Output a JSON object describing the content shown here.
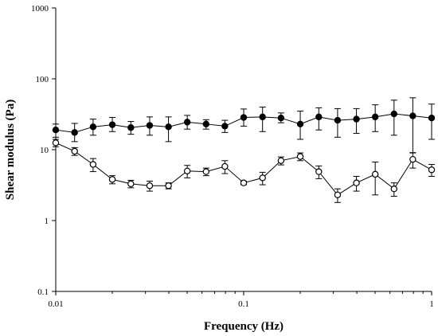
{
  "chart_data": {
    "type": "scatter",
    "xlabel": "Frequency (Hz)",
    "ylabel": "Shear modulus (Pa)",
    "xscale": "log",
    "yscale": "log",
    "xlim": [
      0.01,
      1
    ],
    "ylim": [
      0.1,
      1000
    ],
    "x_ticks": [
      "0.01",
      "0.1",
      "1"
    ],
    "y_ticks": [
      "0.1",
      "1",
      "10",
      "100",
      "1000"
    ],
    "grid": false,
    "legend": "none",
    "x": [
      0.01,
      0.0126,
      0.0158,
      0.02,
      0.0251,
      0.0316,
      0.0398,
      0.0501,
      0.0631,
      0.0794,
      0.1,
      0.126,
      0.158,
      0.2,
      0.251,
      0.316,
      0.398,
      0.501,
      0.631,
      0.794,
      1.0
    ],
    "series": [
      {
        "marker": "filled-circle",
        "color": "#000000",
        "values": [
          19,
          17.5,
          21,
          22.5,
          20.5,
          22,
          21,
          24.5,
          23,
          21.5,
          28.5,
          29,
          28,
          23,
          29,
          26,
          27,
          29,
          32,
          30,
          28
        ],
        "err_low": [
          4,
          4.5,
          5,
          4.5,
          4,
          6,
          8,
          5,
          3.5,
          4,
          7,
          11,
          4,
          9,
          10,
          11,
          10,
          11,
          16,
          21,
          14
        ],
        "err_high": [
          4,
          6,
          6,
          6,
          4.5,
          7,
          8,
          6,
          3.5,
          4.5,
          9,
          11,
          5,
          12,
          10,
          12,
          11,
          14,
          18,
          24,
          16
        ]
      },
      {
        "marker": "open-circle",
        "color": "#000000",
        "values": [
          12.5,
          9.5,
          6.2,
          3.8,
          3.3,
          3.1,
          3.1,
          5.0,
          4.9,
          5.8,
          3.4,
          4.0,
          7.0,
          8.0,
          4.9,
          2.3,
          3.4,
          4.5,
          2.8,
          7.3,
          5.2
        ],
        "err_low": [
          1.5,
          1.2,
          1.3,
          0.5,
          0.4,
          0.5,
          0.3,
          1.0,
          0.6,
          1.2,
          0.2,
          0.8,
          0.9,
          1.0,
          1.0,
          0.5,
          0.8,
          2.2,
          0.6,
          1.8,
          1.0
        ],
        "err_high": [
          1.5,
          1.2,
          1.3,
          0.5,
          0.4,
          0.5,
          0.3,
          1.0,
          0.6,
          1.2,
          0.2,
          0.8,
          0.9,
          1.0,
          1.0,
          0.5,
          0.8,
          2.2,
          0.6,
          1.8,
          1.0
        ]
      }
    ]
  }
}
